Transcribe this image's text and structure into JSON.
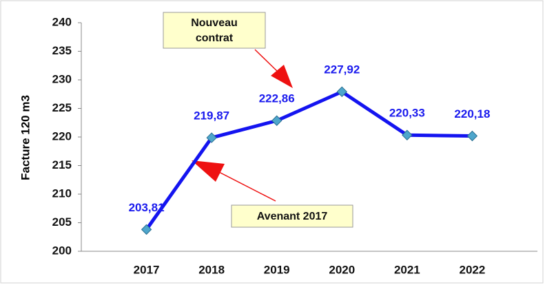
{
  "chart_data": {
    "type": "line",
    "y_label": "Facture 120 m3",
    "categories": [
      "2017",
      "2018",
      "2019",
      "2020",
      "2021",
      "2022"
    ],
    "values": [
      203.81,
      219.87,
      222.86,
      227.92,
      220.33,
      220.18
    ],
    "value_labels": [
      "203,81",
      "219,87",
      "222,86",
      "227,92",
      "220,33",
      "220,18"
    ],
    "color": "#1414f0",
    "marker_color": "#4ea6cc",
    "ylim": [
      200,
      240
    ],
    "yticks": [
      200,
      205,
      210,
      215,
      220,
      225,
      230,
      235,
      240
    ],
    "grid": false,
    "annotations": [
      {
        "lines": [
          "Nouveau",
          "contrat"
        ]
      },
      {
        "lines": [
          "Avenant 2017"
        ]
      }
    ]
  }
}
